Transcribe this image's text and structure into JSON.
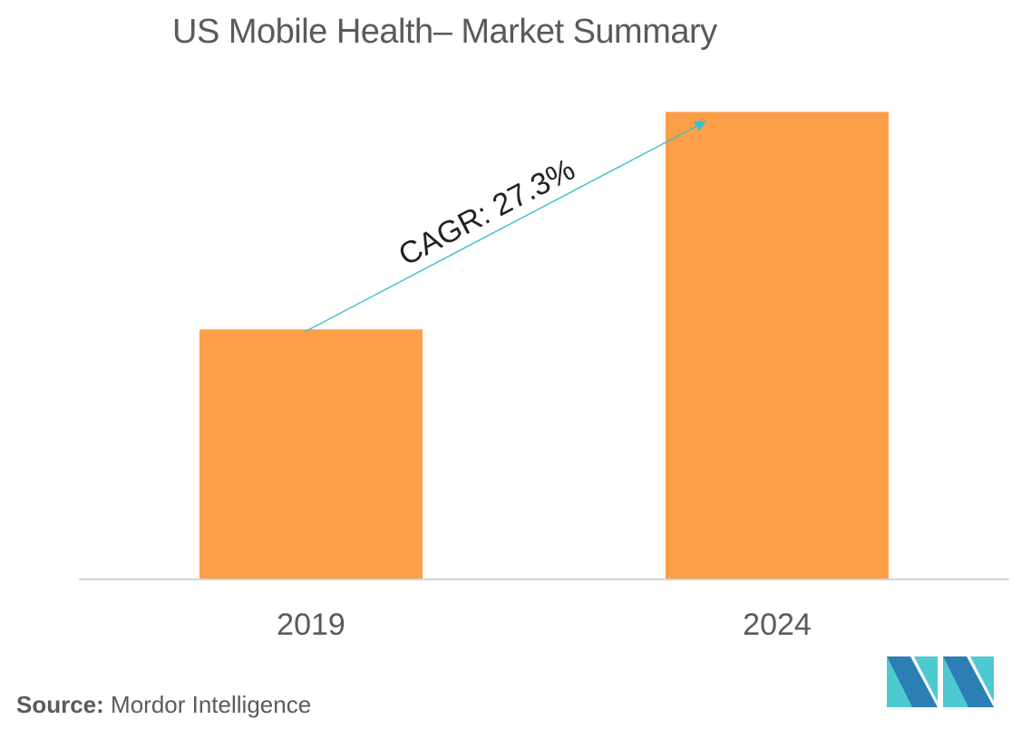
{
  "chart_data": {
    "type": "bar",
    "title": "US Mobile Health– Market Summary",
    "categories": [
      "2019",
      "2024"
    ],
    "values": [
      1.0,
      1.87
    ],
    "ylim": [
      0,
      2.1
    ],
    "grid": false,
    "legend": "none",
    "annotation": "CAGR: 27.3%",
    "xlabel": "",
    "ylabel": ""
  },
  "source": {
    "label": "Source:",
    "text": "Mordor Intelligence"
  },
  "colors": {
    "bar": "#fd9f48",
    "arrow": "#3dbfcb",
    "axis": "#d4d4d4",
    "text": "#5a5a5a",
    "logo_dark": "#2b7fb5",
    "logo_light": "#4ec9d2"
  },
  "logo": {
    "icon": "mordor-intelligence-logo-icon"
  }
}
